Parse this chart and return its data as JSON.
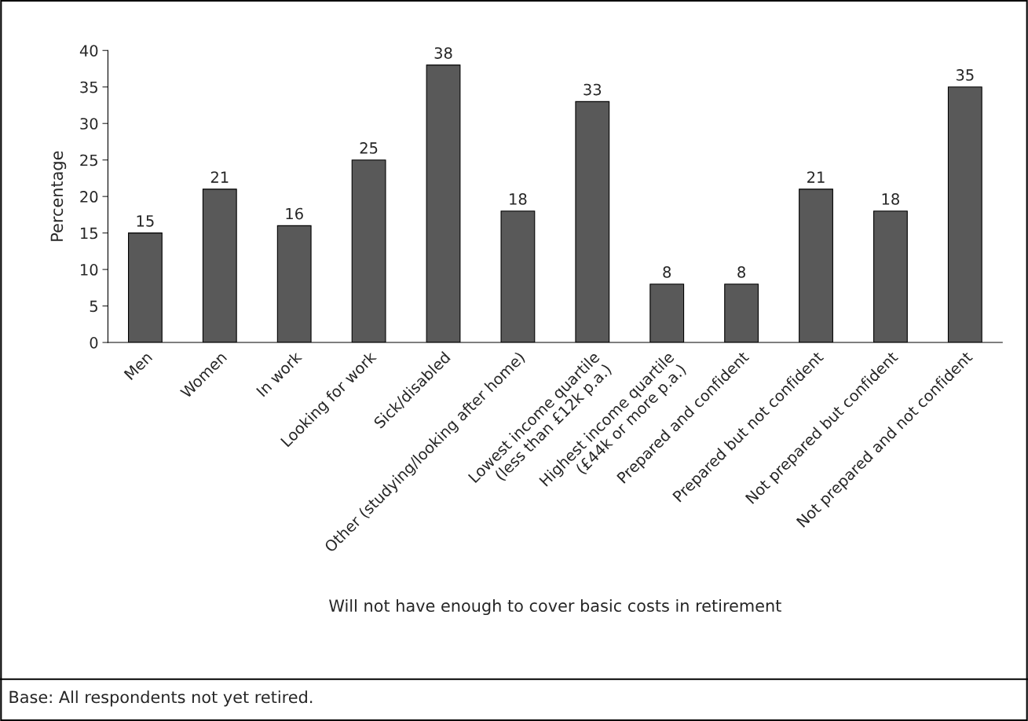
{
  "chart_data": {
    "type": "bar",
    "categories": [
      "Men",
      "Women",
      "In work",
      "Looking for work",
      "Sick/disabled",
      "Other (studying/looking after home)",
      "Lowest income quartile\n(less than £12k p.a.)",
      "Highest income quartile\n(£44k or more p.a.)",
      "Prepared and confident",
      "Prepared but not confident",
      "Not prepared but confident",
      "Not prepared and not confident"
    ],
    "values": [
      15,
      21,
      16,
      25,
      38,
      18,
      33,
      8,
      8,
      21,
      18,
      35
    ],
    "color": "#595959",
    "xlabel": "Will not have enough to cover basic costs in retirement",
    "ylabel": "Percentage",
    "ylim": [
      0,
      40
    ],
    "yticks": [
      0,
      5,
      10,
      15,
      20,
      25,
      30,
      35,
      40
    ],
    "data_labels": true,
    "grid": false,
    "legend": false,
    "annotations": [
      "Base: All respondents not yet retired."
    ]
  }
}
